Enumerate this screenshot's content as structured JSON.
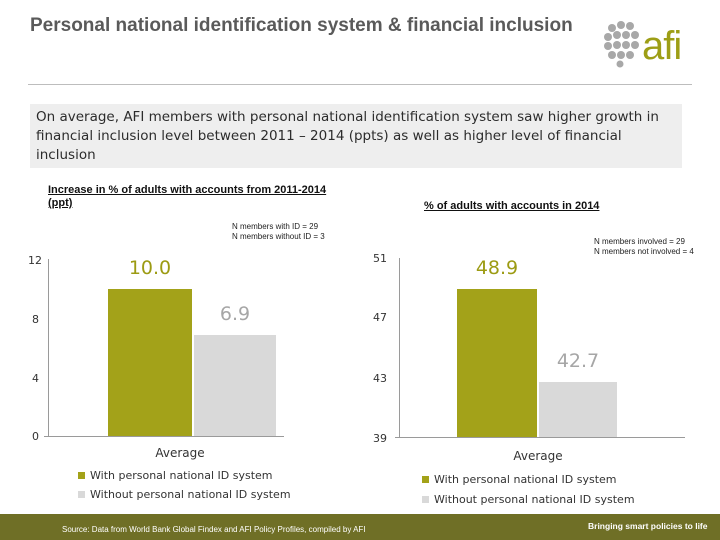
{
  "slide": {
    "title": "Personal national identification system & financial inclusion",
    "logo_text": "afi",
    "callout": "On average, AFI members with personal national identification system saw higher growth in financial inclusion level between 2011 – 2014 (ppts) as well as higher level of financial inclusion",
    "footer_source": "Source: Data from World Bank Global Findex and AFI Policy Profiles, compiled by AFI",
    "footer_tagline": "Bringing smart policies to life"
  },
  "colors": {
    "with_id": "#a3a219",
    "without_id": "#d9d9d9",
    "accent_text_with": "#9c9b13",
    "accent_text_without": "#a6a6a6"
  },
  "chart_data": [
    {
      "type": "bar",
      "title": "Increase in % of adults with accounts from 2011-2014 (ppt)",
      "note": "N members with ID = 29\nN members without ID = 3",
      "categories": [
        "Average"
      ],
      "ylim": [
        0,
        12
      ],
      "yticks": [
        "12",
        "8",
        "4",
        "0"
      ],
      "series": [
        {
          "name": "With personal national ID system",
          "values": [
            10.0
          ],
          "label": "10.0"
        },
        {
          "name": "Without personal national ID system",
          "values": [
            6.9
          ],
          "label": "6.9"
        }
      ],
      "legend": "bottom"
    },
    {
      "type": "bar",
      "title": "% of adults with accounts in 2014",
      "note": "N members involved = 29\nN members not involved = 4",
      "categories": [
        "Average"
      ],
      "ylim": [
        39,
        51
      ],
      "yticks": [
        "51",
        "47",
        "43",
        "39"
      ],
      "series": [
        {
          "name": "With personal national ID system",
          "values": [
            48.9
          ],
          "label": "48.9"
        },
        {
          "name": "Without personal national ID system",
          "values": [
            42.7
          ],
          "label": "42.7"
        }
      ],
      "legend": "bottom"
    }
  ]
}
